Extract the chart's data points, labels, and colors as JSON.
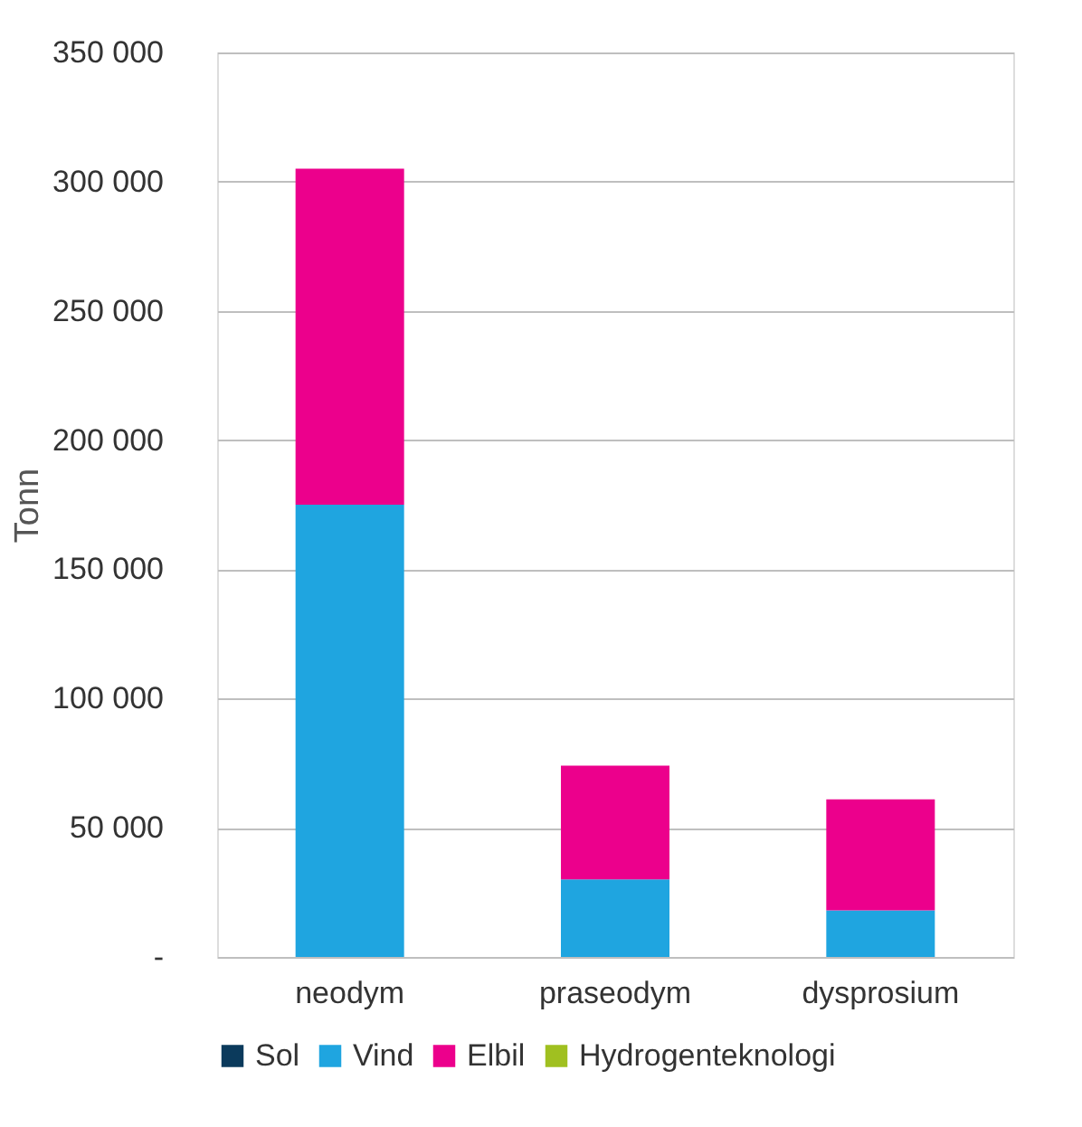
{
  "chart_data": {
    "type": "bar",
    "stacked": true,
    "ylabel": "Tonn",
    "categories": [
      "neodym",
      "praseodym",
      "dysprosium"
    ],
    "series": [
      {
        "name": "Sol",
        "color": "#0b3a5c",
        "values": [
          0,
          0,
          0
        ]
      },
      {
        "name": "Vind",
        "color": "#1fa5e0",
        "values": [
          175000,
          30000,
          18000
        ]
      },
      {
        "name": "Elbil",
        "color": "#ec008c",
        "values": [
          130000,
          44000,
          43000
        ]
      },
      {
        "name": "Hydrogenteknologi",
        "color": "#a0c020",
        "values": [
          0,
          0,
          0
        ]
      }
    ],
    "ylim": [
      0,
      350000
    ],
    "yticks": [
      {
        "value": 0,
        "label": "-"
      },
      {
        "value": 50000,
        "label": "50 000"
      },
      {
        "value": 100000,
        "label": "100 000"
      },
      {
        "value": 150000,
        "label": "150 000"
      },
      {
        "value": 200000,
        "label": "200 000"
      },
      {
        "value": 250000,
        "label": "250 000"
      },
      {
        "value": 300000,
        "label": "300 000"
      },
      {
        "value": 350000,
        "label": "350 000"
      }
    ],
    "grid": "y",
    "legend": "bottom"
  }
}
